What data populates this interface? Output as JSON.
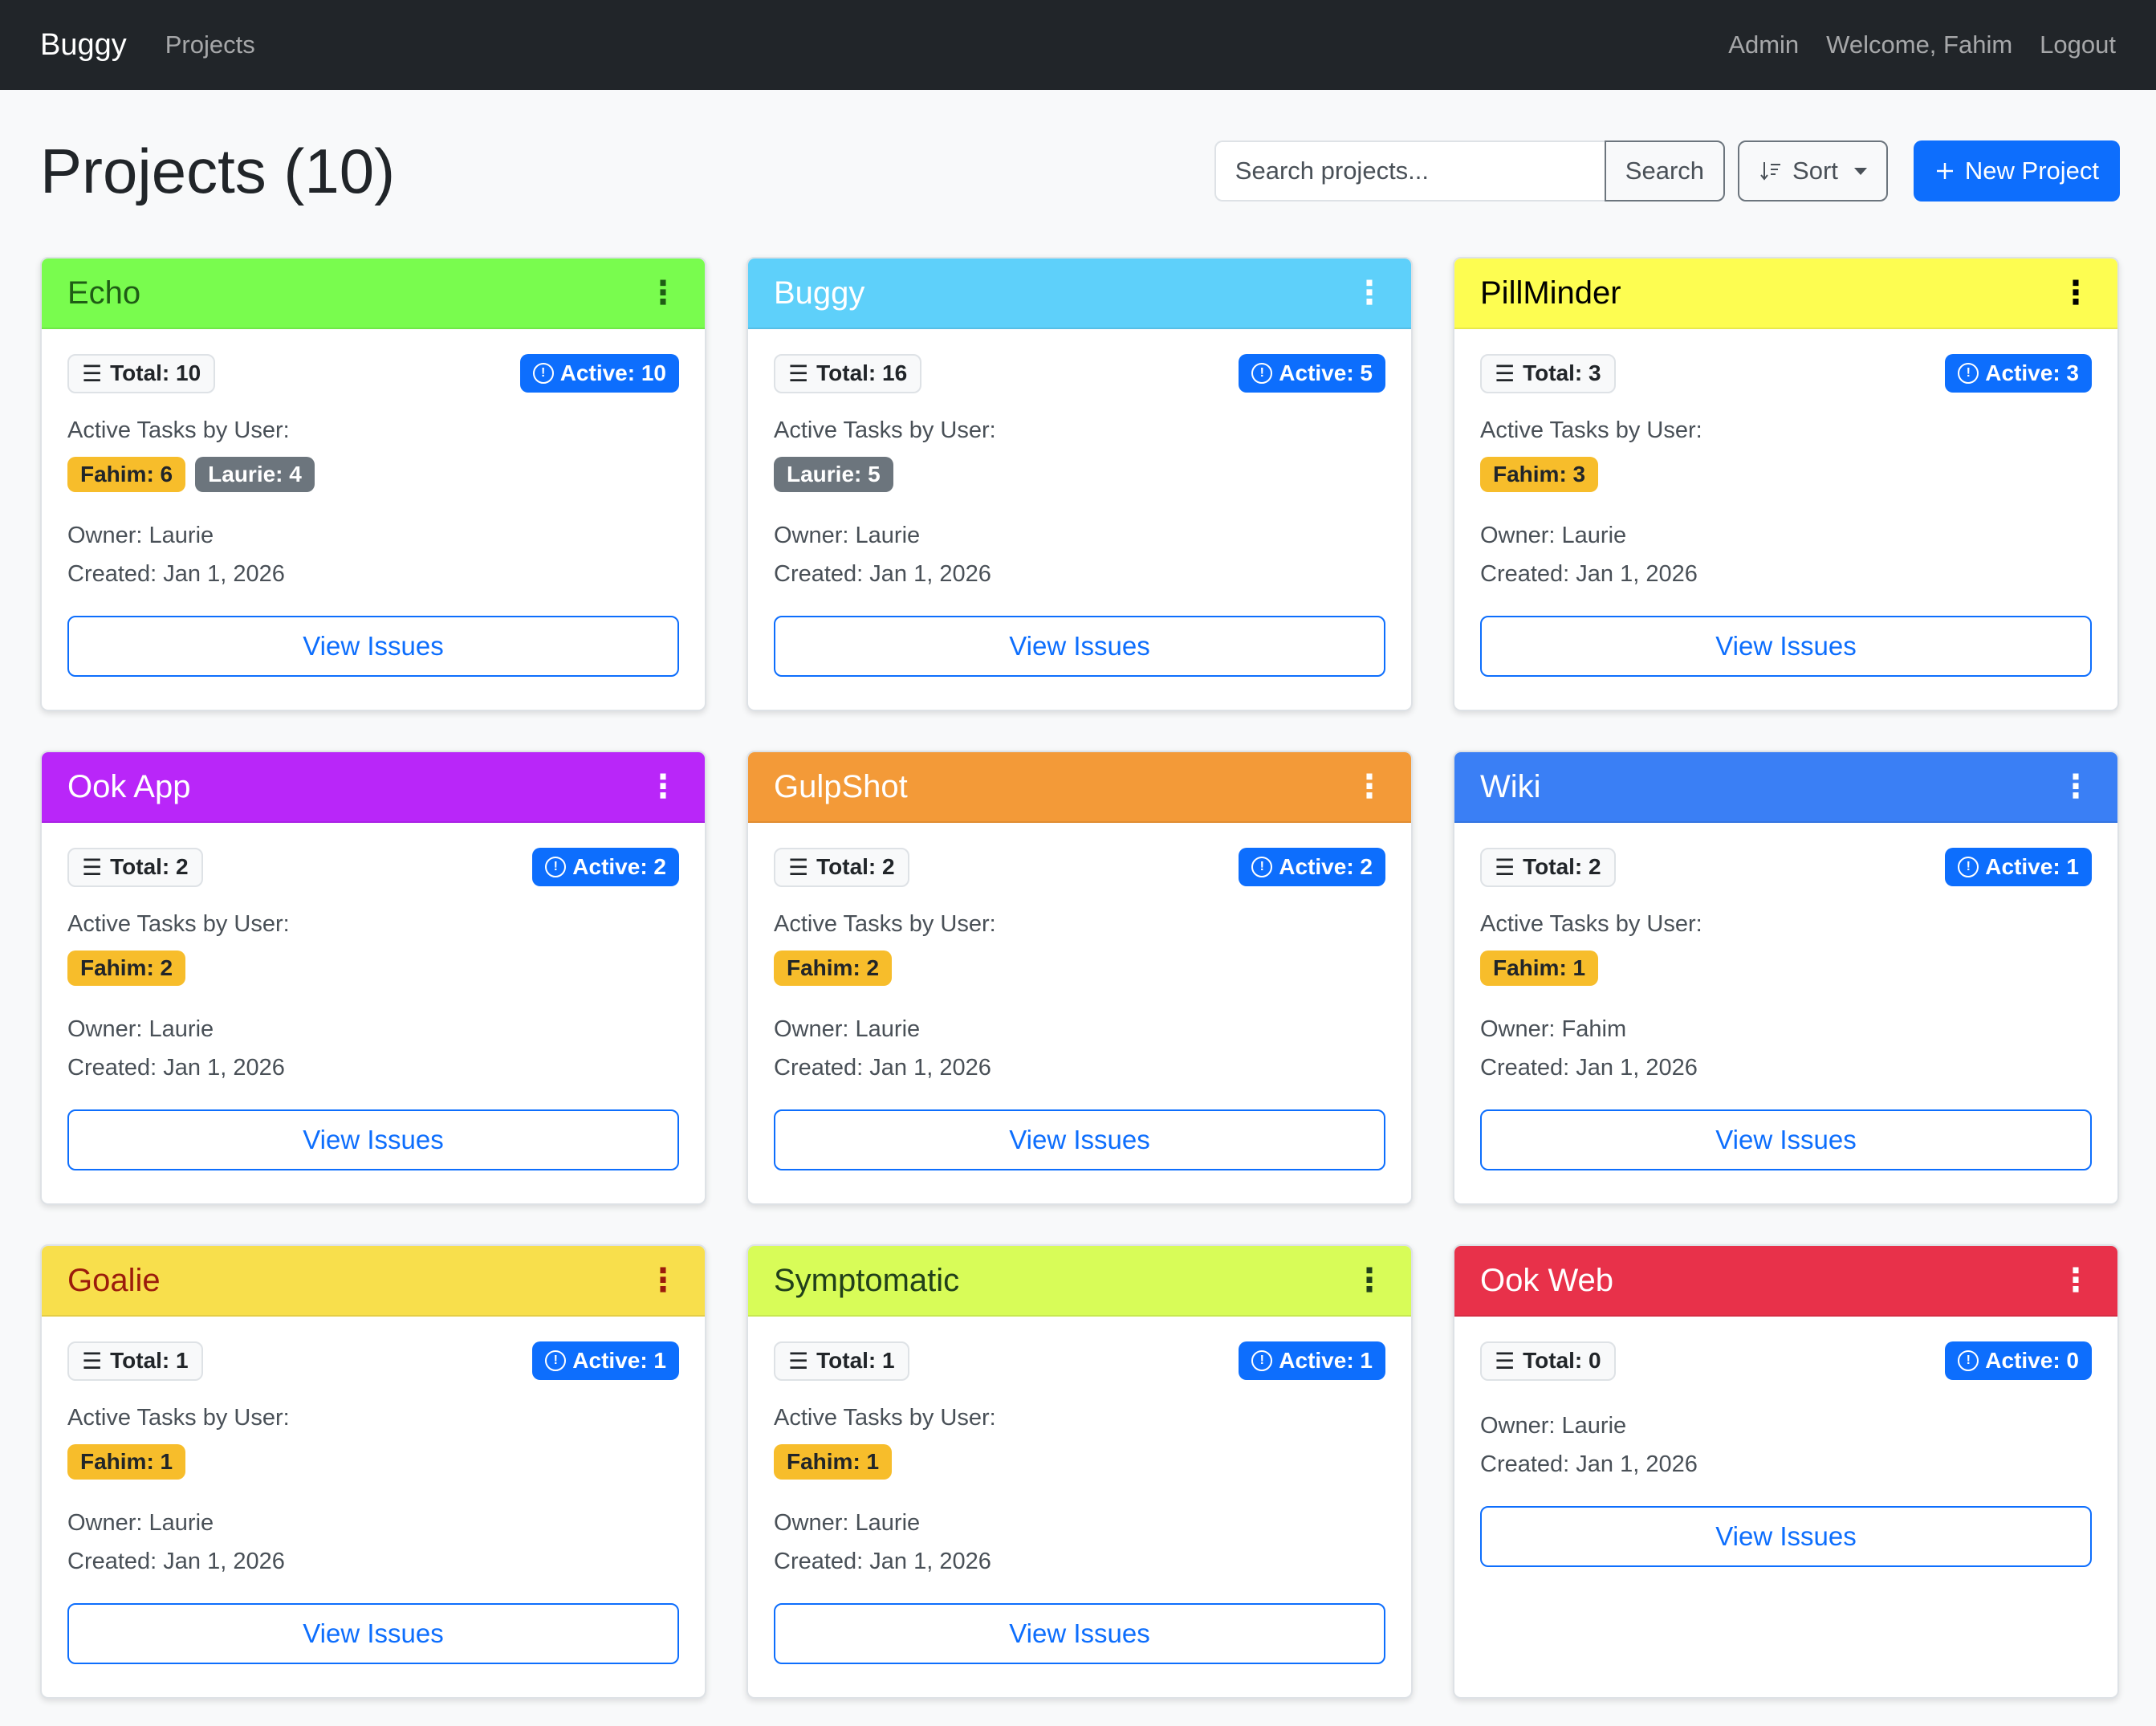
{
  "navbar": {
    "brand": "Buggy",
    "projects_link": "Projects",
    "admin_link": "Admin",
    "welcome": "Welcome, Fahim",
    "logout": "Logout"
  },
  "page": {
    "title": "Projects (10)"
  },
  "toolbar": {
    "search_placeholder": "Search projects...",
    "search_label": "Search",
    "sort_label": "Sort",
    "new_label": "New Project"
  },
  "labels": {
    "active_tasks_by_user": "Active Tasks by User:",
    "view_issues": "View Issues"
  },
  "icons": {
    "list": "list-icon",
    "alert": "alert-circle-icon",
    "kebab": "kebab-menu-icon",
    "sort": "sort-icon",
    "plus": "plus-icon"
  },
  "colors": {
    "primary": "#0d6efd",
    "fahim_badge": "#f7bd2b",
    "laurie_badge": "#6c757d"
  },
  "projects": [
    {
      "name": "Echo",
      "header_bg": "#79fc4e",
      "header_fg": "#1f5d15",
      "total": "Total: 10",
      "active": "Active: 10",
      "users": [
        {
          "label": "Fahim: 6",
          "who": "fahim"
        },
        {
          "label": "Laurie: 4",
          "who": "laurie"
        }
      ],
      "owner": "Owner: Laurie",
      "created": "Created: Jan 1, 2026"
    },
    {
      "name": "Buggy",
      "header_bg": "#5ed0fa",
      "header_fg": "#ffffff",
      "total": "Total: 16",
      "active": "Active: 5",
      "users": [
        {
          "label": "Laurie: 5",
          "who": "laurie"
        }
      ],
      "owner": "Owner: Laurie",
      "created": "Created: Jan 1, 2026"
    },
    {
      "name": "PillMinder",
      "header_bg": "#fdfd51",
      "header_fg": "#000000",
      "total": "Total: 3",
      "active": "Active: 3",
      "users": [
        {
          "label": "Fahim: 3",
          "who": "fahim"
        }
      ],
      "owner": "Owner: Laurie",
      "created": "Created: Jan 1, 2026"
    },
    {
      "name": "Ook App",
      "header_bg": "#b926f9",
      "header_fg": "#ffffff",
      "total": "Total: 2",
      "active": "Active: 2",
      "users": [
        {
          "label": "Fahim: 2",
          "who": "fahim"
        }
      ],
      "owner": "Owner: Laurie",
      "created": "Created: Jan 1, 2026"
    },
    {
      "name": "GulpShot",
      "header_bg": "#f39a38",
      "header_fg": "#ffffff",
      "total": "Total: 2",
      "active": "Active: 2",
      "users": [
        {
          "label": "Fahim: 2",
          "who": "fahim"
        }
      ],
      "owner": "Owner: Laurie",
      "created": "Created: Jan 1, 2026"
    },
    {
      "name": "Wiki",
      "header_bg": "#3a7ff5",
      "header_fg": "#ffffff",
      "total": "Total: 2",
      "active": "Active: 1",
      "users": [
        {
          "label": "Fahim: 1",
          "who": "fahim"
        }
      ],
      "owner": "Owner: Fahim",
      "created": "Created: Jan 1, 2026"
    },
    {
      "name": "Goalie",
      "header_bg": "#f8df4c",
      "header_fg": "#9b1c0c",
      "total": "Total: 1",
      "active": "Active: 1",
      "users": [
        {
          "label": "Fahim: 1",
          "who": "fahim"
        }
      ],
      "owner": "Owner: Laurie",
      "created": "Created: Jan 1, 2026"
    },
    {
      "name": "Symptomatic",
      "header_bg": "#d8fc58",
      "header_fg": "#21401a",
      "total": "Total: 1",
      "active": "Active: 1",
      "users": [
        {
          "label": "Fahim: 1",
          "who": "fahim"
        }
      ],
      "owner": "Owner: Laurie",
      "created": "Created: Jan 1, 2026"
    },
    {
      "name": "Ook Web",
      "header_bg": "#e8314a",
      "header_fg": "#ffffff",
      "total": "Total: 0",
      "active": "Active: 0",
      "users": [],
      "owner": "Owner: Laurie",
      "created": "Created: Jan 1, 2026"
    }
  ]
}
